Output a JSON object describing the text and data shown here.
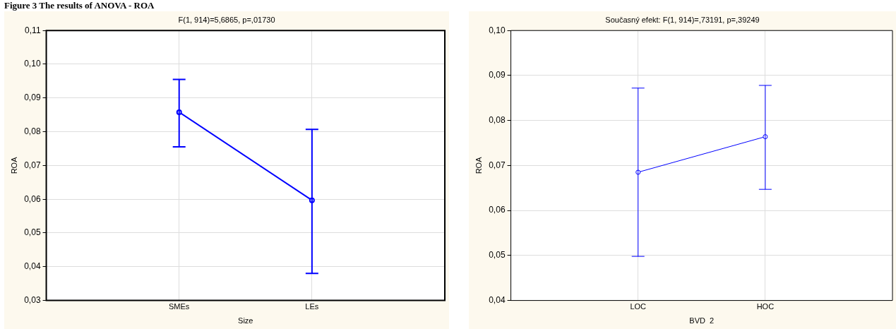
{
  "chart_data": [
    {
      "type": "line",
      "title": "F(1, 914)=5,6865, p=,01730",
      "xlabel": "Size",
      "ylabel": "ROA",
      "annotations": [
        "Figure 3 The results of ANOVA - ROA"
      ],
      "categories": [
        "SMEs",
        "LEs"
      ],
      "series": [
        {
          "color": "#0000ff",
          "values": [
            0.0858,
            0.0597
          ],
          "errors": [
            [
              0.0755,
              0.0955
            ],
            [
              0.038,
              0.0807
            ]
          ]
        }
      ],
      "ylim": [
        0.03,
        0.11
      ],
      "yticks": [
        {
          "value": 0.03,
          "label": "0,03"
        },
        {
          "value": 0.04,
          "label": "0,04"
        },
        {
          "value": 0.05,
          "label": "0,05"
        },
        {
          "value": 0.06,
          "label": "0,06"
        },
        {
          "value": 0.07,
          "label": "0,07"
        },
        {
          "value": 0.08,
          "label": "0,08"
        },
        {
          "value": 0.09,
          "label": "0,09"
        },
        {
          "value": 0.1,
          "label": "0,10"
        },
        {
          "value": 0.11,
          "label": "0,11"
        }
      ],
      "grid": true,
      "marker": "circle",
      "legend": false
    },
    {
      "type": "line",
      "title": "Současný efekt: F(1, 914)=,73191, p=,39249",
      "xlabel": "BVD  2",
      "ylabel": "ROA",
      "categories": [
        "LOC",
        "HOC"
      ],
      "series": [
        {
          "color": "#0000ff",
          "values": [
            0.0685,
            0.0764
          ],
          "errors": [
            [
              0.0498,
              0.0872
            ],
            [
              0.0647,
              0.0878
            ]
          ]
        }
      ],
      "ylim": [
        0.04,
        0.1
      ],
      "yticks": [
        {
          "value": 0.04,
          "label": "0,04"
        },
        {
          "value": 0.05,
          "label": "0,05"
        },
        {
          "value": 0.06,
          "label": "0,06"
        },
        {
          "value": 0.07,
          "label": "0,07"
        },
        {
          "value": 0.08,
          "label": "0,08"
        },
        {
          "value": 0.09,
          "label": "0,09"
        },
        {
          "value": 0.1,
          "label": "0,10"
        }
      ],
      "grid": true,
      "marker": "circle",
      "legend": false
    }
  ]
}
